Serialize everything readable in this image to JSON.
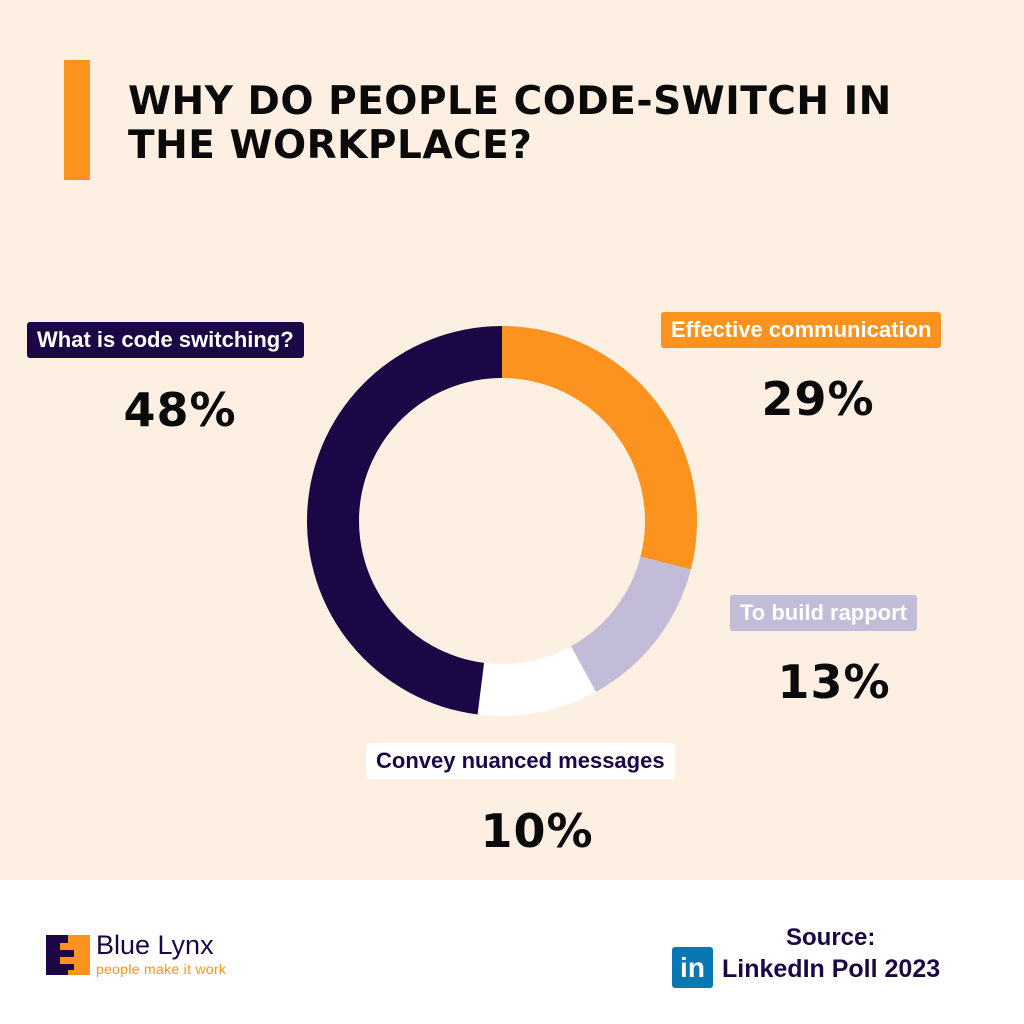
{
  "header": {
    "title": "WHY DO PEOPLE CODE-SWITCH IN THE WORKPLACE?",
    "accent_color": "#fb931e"
  },
  "chart_data": {
    "type": "pie",
    "variant": "donut",
    "title": "WHY DO PEOPLE CODE-SWITCH IN THE WORKPLACE?",
    "categories": [
      "Effective communication",
      "To build rapport",
      "Convey nuanced messages",
      "What is code switching?"
    ],
    "values": [
      29,
      13,
      10,
      48
    ],
    "unit": "%",
    "colors": [
      "#fb931e",
      "#c3bcd8",
      "#ffffff",
      "#1b0745"
    ],
    "start_angle": "12 o'clock",
    "direction": "clockwise",
    "legend": "callout labels around the donut"
  },
  "labels": {
    "what_is": {
      "label": "What is code switching?",
      "value": "48%"
    },
    "effective": {
      "label": "Effective communication",
      "value": "29%"
    },
    "rapport": {
      "label": "To build rapport",
      "value": "13%"
    },
    "nuanced": {
      "label": "Convey nuanced messages",
      "value": "10%"
    }
  },
  "footer": {
    "brand": {
      "name": "Blue Lynx",
      "tagline": "people make it work",
      "icon": "blue-lynx-logo-icon"
    },
    "source": {
      "label": "Source:",
      "icon": "linkedin-icon",
      "icon_text": "in",
      "text": "LinkedIn Poll 2023"
    }
  }
}
